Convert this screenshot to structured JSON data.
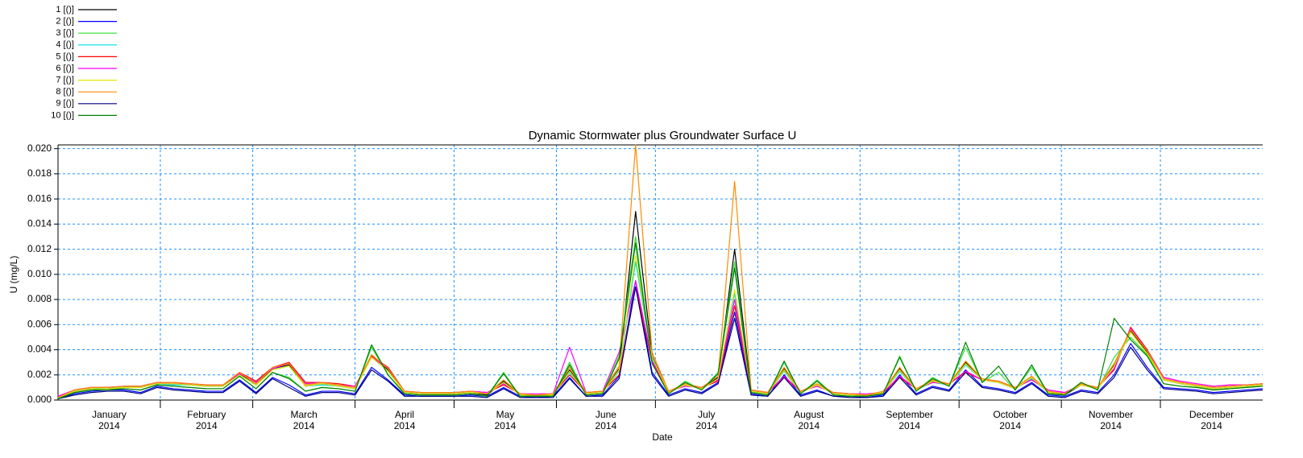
{
  "chart_data": {
    "type": "line",
    "title": "Dynamic Stormwater plus Groundwater Surface U",
    "x_label": "Date",
    "y_label": "U (mg/L)",
    "xlim": [
      0,
      365
    ],
    "ylim": [
      0,
      0.0203
    ],
    "yticks": [
      {
        "value": 0,
        "label": "0.000"
      },
      {
        "value": 0.002,
        "label": "0.002"
      },
      {
        "value": 0.004,
        "label": "0.004"
      },
      {
        "value": 0.006,
        "label": "0.006"
      },
      {
        "value": 0.008,
        "label": "0.008"
      },
      {
        "value": 0.01,
        "label": "0.010"
      },
      {
        "value": 0.012,
        "label": "0.012"
      },
      {
        "value": 0.014,
        "label": "0.014"
      },
      {
        "value": 0.016,
        "label": "0.016"
      },
      {
        "value": 0.018,
        "label": "0.018"
      },
      {
        "value": 0.02,
        "label": "0.020"
      }
    ],
    "xticks": [
      {
        "value": 15.5,
        "label": "January\n2014"
      },
      {
        "value": 45,
        "label": "February\n2014"
      },
      {
        "value": 74.5,
        "label": "March\n2014"
      },
      {
        "value": 105,
        "label": "April\n2014"
      },
      {
        "value": 135.5,
        "label": "May\n2014"
      },
      {
        "value": 166,
        "label": "June\n2014"
      },
      {
        "value": 196.5,
        "label": "July\n2014"
      },
      {
        "value": 227.5,
        "label": "August\n2014"
      },
      {
        "value": 258,
        "label": "September\n2014"
      },
      {
        "value": 288.5,
        "label": "October\n2014"
      },
      {
        "value": 319,
        "label": "November\n2014"
      },
      {
        "value": 349.5,
        "label": "December\n2014"
      }
    ],
    "x_grid": [
      31,
      59,
      90,
      120,
      151,
      181,
      212,
      243,
      273,
      304,
      334
    ],
    "grid": true,
    "x": [
      0,
      5,
      10,
      15,
      20,
      25,
      30,
      35,
      40,
      45,
      50,
      55,
      60,
      65,
      70,
      75,
      80,
      85,
      90,
      95,
      100,
      105,
      110,
      115,
      120,
      125,
      130,
      135,
      140,
      145,
      150,
      155,
      160,
      165,
      170,
      175,
      180,
      185,
      190,
      195,
      200,
      205,
      210,
      215,
      220,
      225,
      230,
      235,
      240,
      245,
      250,
      255,
      260,
      265,
      270,
      275,
      280,
      285,
      290,
      295,
      300,
      305,
      310,
      315,
      320,
      325,
      330,
      335,
      340,
      345,
      350,
      355,
      360,
      365
    ],
    "series": [
      {
        "name": "1 [()]",
        "color": "#000000",
        "values": [
          0.0001,
          0.0007,
          0.0009,
          0.0009,
          0.001,
          0.001,
          0.0013,
          0.0013,
          0.0012,
          0.0011,
          0.0011,
          0.0021,
          0.0012,
          0.0025,
          0.0028,
          0.0011,
          0.0013,
          0.0011,
          0.0009,
          0.0036,
          0.0024,
          0.0006,
          0.0005,
          0.0005,
          0.0005,
          0.0006,
          0.0004,
          0.0015,
          0.0004,
          0.0003,
          0.0004,
          0.0024,
          0.0005,
          0.0006,
          0.0025,
          0.015,
          0.0035,
          0.0006,
          0.0012,
          0.0009,
          0.0018,
          0.012,
          0.0007,
          0.0005,
          0.0025,
          0.0006,
          0.0012,
          0.0005,
          0.0004,
          0.0003,
          0.0006,
          0.0025,
          0.0008,
          0.0015,
          0.0012,
          0.003,
          0.0016,
          0.0014,
          0.0009,
          0.0018,
          0.0006,
          0.0004,
          0.0012,
          0.0009,
          0.0028,
          0.0055,
          0.0038,
          0.0016,
          0.0013,
          0.0011,
          0.0009,
          0.001,
          0.0011,
          0.0012
        ]
      },
      {
        "name": "2 [()]",
        "color": "#0000ff",
        "values": [
          0.0001,
          0.0005,
          0.0007,
          0.0008,
          0.0008,
          0.0006,
          0.0011,
          0.0009,
          0.0008,
          0.0007,
          0.0007,
          0.0016,
          0.0006,
          0.0018,
          0.0012,
          0.0004,
          0.0007,
          0.0007,
          0.0005,
          0.0026,
          0.0016,
          0.0004,
          0.0003,
          0.0003,
          0.0003,
          0.0004,
          0.0003,
          0.001,
          0.0003,
          0.0002,
          0.0003,
          0.0018,
          0.0003,
          0.0004,
          0.0019,
          0.0095,
          0.0022,
          0.0004,
          0.0009,
          0.0006,
          0.0014,
          0.007,
          0.0005,
          0.0003,
          0.002,
          0.0004,
          0.0008,
          0.0003,
          0.0003,
          0.0002,
          0.0004,
          0.002,
          0.0005,
          0.0011,
          0.0008,
          0.0024,
          0.0011,
          0.0009,
          0.0006,
          0.0014,
          0.0004,
          0.0003,
          0.0008,
          0.0006,
          0.002,
          0.0045,
          0.0026,
          0.001,
          0.0009,
          0.0008,
          0.0006,
          0.0007,
          0.0008,
          0.0009
        ]
      },
      {
        "name": "3 [()]",
        "color": "#33dd33",
        "values": [
          0.0001,
          0.0006,
          0.0008,
          0.0009,
          0.0009,
          0.0008,
          0.0012,
          0.0011,
          0.001,
          0.0009,
          0.0009,
          0.0019,
          0.0009,
          0.0022,
          0.0018,
          0.0007,
          0.001,
          0.0009,
          0.0007,
          0.0042,
          0.002,
          0.0005,
          0.0004,
          0.0004,
          0.0004,
          0.0005,
          0.0003,
          0.0022,
          0.0003,
          0.0003,
          0.0003,
          0.003,
          0.0004,
          0.0005,
          0.0035,
          0.013,
          0.003,
          0.0005,
          0.0015,
          0.0008,
          0.0022,
          0.011,
          0.0006,
          0.0004,
          0.003,
          0.0005,
          0.0016,
          0.0004,
          0.0003,
          0.0003,
          0.0005,
          0.0035,
          0.0007,
          0.0018,
          0.0011,
          0.0042,
          0.0014,
          0.0022,
          0.0008,
          0.0026,
          0.0005,
          0.0004,
          0.0014,
          0.0008,
          0.0034,
          0.005,
          0.0036,
          0.0013,
          0.0011,
          0.001,
          0.0008,
          0.0009,
          0.001,
          0.0011
        ]
      },
      {
        "name": "4 [()]",
        "color": "#00dddd",
        "values": [
          0.0002,
          0.0007,
          0.0009,
          0.001,
          0.001,
          0.001,
          0.0013,
          0.0012,
          0.0012,
          0.0011,
          0.0011,
          0.002,
          0.0012,
          0.0024,
          0.0027,
          0.0011,
          0.0012,
          0.0011,
          0.0009,
          0.0034,
          0.0023,
          0.0006,
          0.0005,
          0.0005,
          0.0005,
          0.0006,
          0.0005,
          0.0014,
          0.0004,
          0.0004,
          0.0004,
          0.0022,
          0.0005,
          0.0006,
          0.0023,
          0.011,
          0.0033,
          0.0006,
          0.0012,
          0.0009,
          0.0017,
          0.0085,
          0.0007,
          0.0005,
          0.0023,
          0.0006,
          0.0012,
          0.0005,
          0.0004,
          0.0004,
          0.0006,
          0.0023,
          0.0008,
          0.0014,
          0.0012,
          0.0028,
          0.0016,
          0.0014,
          0.0009,
          0.0017,
          0.0006,
          0.0005,
          0.0012,
          0.0009,
          0.0027,
          0.0054,
          0.0037,
          0.0016,
          0.0013,
          0.0011,
          0.0009,
          0.001,
          0.0011,
          0.0012
        ]
      },
      {
        "name": "5 [()]",
        "color": "#ff0000",
        "values": [
          0.0003,
          0.0008,
          0.001,
          0.001,
          0.0011,
          0.0011,
          0.0014,
          0.0014,
          0.0013,
          0.0012,
          0.0012,
          0.0022,
          0.0015,
          0.0026,
          0.003,
          0.0014,
          0.0014,
          0.0013,
          0.0011,
          0.0035,
          0.0026,
          0.0007,
          0.0006,
          0.0006,
          0.0006,
          0.0007,
          0.0006,
          0.0012,
          0.0005,
          0.0004,
          0.0005,
          0.002,
          0.0006,
          0.0007,
          0.002,
          0.009,
          0.003,
          0.0007,
          0.0011,
          0.001,
          0.0015,
          0.0075,
          0.0008,
          0.0006,
          0.0018,
          0.0007,
          0.0011,
          0.0006,
          0.0005,
          0.0004,
          0.0006,
          0.0018,
          0.0009,
          0.0014,
          0.0013,
          0.0022,
          0.0016,
          0.0015,
          0.001,
          0.0016,
          0.0008,
          0.0006,
          0.0012,
          0.001,
          0.0024,
          0.0058,
          0.004,
          0.0018,
          0.0015,
          0.0013,
          0.0011,
          0.0012,
          0.0012,
          0.0013
        ]
      },
      {
        "name": "6 [()]",
        "color": "#ff00ff",
        "values": [
          0.0003,
          0.0008,
          0.001,
          0.001,
          0.0011,
          0.0011,
          0.0014,
          0.0013,
          0.0013,
          0.0012,
          0.0012,
          0.0021,
          0.0014,
          0.0025,
          0.0029,
          0.0013,
          0.0014,
          0.0012,
          0.0011,
          0.0034,
          0.0025,
          0.0007,
          0.0006,
          0.0006,
          0.0006,
          0.0007,
          0.0006,
          0.0013,
          0.0005,
          0.0005,
          0.0005,
          0.0042,
          0.0006,
          0.0007,
          0.0038,
          0.0095,
          0.0031,
          0.0007,
          0.0011,
          0.001,
          0.0016,
          0.008,
          0.0008,
          0.0006,
          0.0019,
          0.0007,
          0.0011,
          0.0006,
          0.0005,
          0.0005,
          0.0006,
          0.0019,
          0.0009,
          0.0014,
          0.0013,
          0.0023,
          0.0016,
          0.0015,
          0.001,
          0.0016,
          0.0008,
          0.0006,
          0.0012,
          0.001,
          0.0025,
          0.0057,
          0.0039,
          0.0018,
          0.0015,
          0.0013,
          0.0011,
          0.0012,
          0.0012,
          0.0013
        ]
      },
      {
        "name": "7 [()]",
        "color": "#e6e600",
        "values": [
          0.0002,
          0.0007,
          0.0009,
          0.0009,
          0.001,
          0.001,
          0.0013,
          0.0013,
          0.0012,
          0.0011,
          0.0011,
          0.002,
          0.0012,
          0.0024,
          0.0027,
          0.0011,
          0.0013,
          0.0011,
          0.0009,
          0.0034,
          0.0023,
          0.0006,
          0.0005,
          0.0005,
          0.0005,
          0.0006,
          0.0005,
          0.0014,
          0.0004,
          0.0004,
          0.0004,
          0.0023,
          0.0005,
          0.0006,
          0.0024,
          0.0115,
          0.0034,
          0.0006,
          0.0012,
          0.0009,
          0.0017,
          0.0088,
          0.0007,
          0.0005,
          0.0024,
          0.0006,
          0.0012,
          0.0005,
          0.0004,
          0.0004,
          0.0006,
          0.0024,
          0.0008,
          0.0015,
          0.0012,
          0.0029,
          0.0016,
          0.0014,
          0.0009,
          0.0018,
          0.0006,
          0.0005,
          0.0012,
          0.0009,
          0.0027,
          0.0054,
          0.0037,
          0.0016,
          0.0013,
          0.0011,
          0.0009,
          0.001,
          0.0011,
          0.0012
        ]
      },
      {
        "name": "8 [()]",
        "color": "#ff8c00",
        "values": [
          0.0002,
          0.0008,
          0.001,
          0.001,
          0.0011,
          0.0011,
          0.0014,
          0.0014,
          0.0013,
          0.0012,
          0.0012,
          0.0022,
          0.0013,
          0.0026,
          0.0029,
          0.0012,
          0.0014,
          0.0012,
          0.001,
          0.0036,
          0.0025,
          0.0007,
          0.0006,
          0.0006,
          0.0006,
          0.0007,
          0.0005,
          0.0016,
          0.0005,
          0.0004,
          0.0005,
          0.0026,
          0.0006,
          0.0007,
          0.0027,
          0.0203,
          0.0038,
          0.0007,
          0.0013,
          0.001,
          0.0019,
          0.0174,
          0.0008,
          0.0006,
          0.0026,
          0.0007,
          0.0013,
          0.0006,
          0.0005,
          0.0004,
          0.0007,
          0.0026,
          0.0009,
          0.0016,
          0.0013,
          0.0031,
          0.0017,
          0.0015,
          0.001,
          0.0019,
          0.0007,
          0.0005,
          0.0013,
          0.001,
          0.0029,
          0.0056,
          0.0039,
          0.0017,
          0.0014,
          0.0012,
          0.001,
          0.0011,
          0.0012,
          0.0013
        ]
      },
      {
        "name": "9 [()]",
        "color": "#000080",
        "values": [
          0.0001,
          0.0004,
          0.0006,
          0.0007,
          0.0007,
          0.0005,
          0.001,
          0.0008,
          0.0007,
          0.0006,
          0.0006,
          0.0015,
          0.0005,
          0.0017,
          0.001,
          0.0003,
          0.0006,
          0.0006,
          0.0004,
          0.0024,
          0.0015,
          0.0003,
          0.0003,
          0.0003,
          0.0003,
          0.0003,
          0.0002,
          0.0009,
          0.0002,
          0.0002,
          0.0002,
          0.0017,
          0.0003,
          0.0003,
          0.0017,
          0.009,
          0.002,
          0.0003,
          0.0008,
          0.0005,
          0.0013,
          0.0065,
          0.0004,
          0.0003,
          0.0018,
          0.0003,
          0.0007,
          0.0003,
          0.0002,
          0.0002,
          0.0003,
          0.0018,
          0.0004,
          0.001,
          0.0007,
          0.0022,
          0.001,
          0.0008,
          0.0005,
          0.0013,
          0.0003,
          0.0002,
          0.0007,
          0.0005,
          0.0018,
          0.0042,
          0.0024,
          0.0009,
          0.0008,
          0.0007,
          0.0005,
          0.0006,
          0.0007,
          0.0008
        ]
      },
      {
        "name": "10 [()]",
        "color": "#008000",
        "values": [
          0.0001,
          0.0006,
          0.0008,
          0.0008,
          0.0009,
          0.0008,
          0.0012,
          0.0011,
          0.001,
          0.0009,
          0.0009,
          0.0019,
          0.0009,
          0.0022,
          0.0017,
          0.0007,
          0.001,
          0.0009,
          0.0007,
          0.0044,
          0.002,
          0.0005,
          0.0004,
          0.0004,
          0.0004,
          0.0005,
          0.0003,
          0.0021,
          0.0003,
          0.0003,
          0.0003,
          0.0028,
          0.0004,
          0.0005,
          0.0033,
          0.0125,
          0.0029,
          0.0005,
          0.0014,
          0.0008,
          0.0021,
          0.0105,
          0.0006,
          0.0004,
          0.0031,
          0.0005,
          0.0015,
          0.0004,
          0.0003,
          0.0003,
          0.0005,
          0.0034,
          0.0007,
          0.0017,
          0.0011,
          0.0046,
          0.0014,
          0.0027,
          0.0008,
          0.0028,
          0.0005,
          0.0004,
          0.0014,
          0.0008,
          0.0065,
          0.0048,
          0.0035,
          0.0013,
          0.0011,
          0.001,
          0.0008,
          0.0009,
          0.001,
          0.0011
        ]
      }
    ]
  }
}
